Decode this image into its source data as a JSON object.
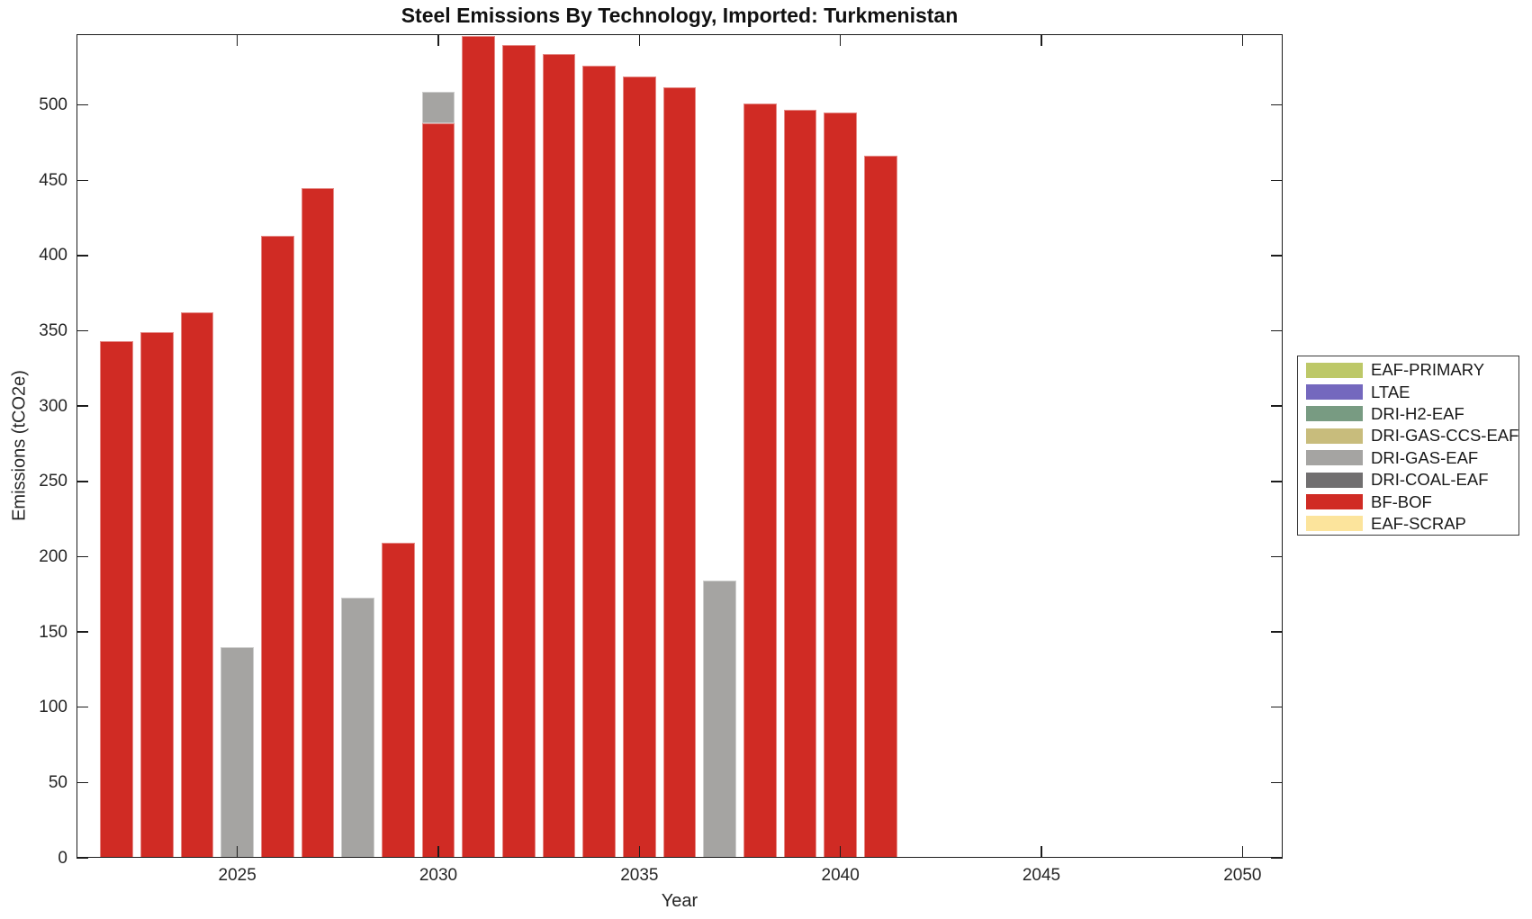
{
  "figure": {
    "background": "#ffffff"
  },
  "chart_data": {
    "type": "bar",
    "stacked": true,
    "title": "Steel Emissions By Technology, Imported: Turkmenistan",
    "xlabel": "Year",
    "ylabel": "Emissions (tCO2e)",
    "xlim": [
      2021,
      2051
    ],
    "ylim": [
      0,
      547
    ],
    "x_ticks": [
      2025,
      2030,
      2035,
      2040,
      2045,
      2050
    ],
    "y_ticks": [
      0,
      50,
      100,
      150,
      200,
      250,
      300,
      350,
      400,
      450,
      500
    ],
    "grid": false,
    "legend_position": "right-outside",
    "bar_width_years": 0.82,
    "categories": [
      2022,
      2023,
      2024,
      2025,
      2026,
      2027,
      2028,
      2029,
      2030,
      2031,
      2032,
      2033,
      2034,
      2035,
      2036,
      2037,
      2038,
      2039,
      2040,
      2041
    ],
    "series": [
      {
        "name": "EAF-PRIMARY",
        "color": "#BDC868",
        "values": [
          0,
          0,
          0,
          0,
          0,
          0,
          0,
          0,
          0,
          0,
          0,
          0,
          0,
          0,
          0,
          0,
          0,
          0,
          0,
          0
        ]
      },
      {
        "name": "LTAE",
        "color": "#7468BE",
        "values": [
          0,
          0,
          0,
          0,
          0,
          0,
          0,
          0,
          0,
          0,
          0,
          0,
          0,
          0,
          0,
          0,
          0,
          0,
          0,
          0
        ]
      },
      {
        "name": "DRI-H2-EAF",
        "color": "#789B82",
        "values": [
          0,
          0,
          0,
          0,
          0,
          0,
          0,
          0,
          0,
          0,
          0,
          0,
          0,
          0,
          0,
          0,
          0,
          0,
          0,
          0
        ]
      },
      {
        "name": "DRI-GAS-CCS-EAF",
        "color": "#C8BC7C",
        "values": [
          0,
          0,
          0,
          0,
          0,
          0,
          0,
          0,
          0,
          0,
          0,
          0,
          0,
          0,
          0,
          0,
          0,
          0,
          0,
          0
        ]
      },
      {
        "name": "DRI-GAS-EAF",
        "color": "#A5A4A2",
        "values": [
          0,
          0,
          0,
          140,
          0,
          0,
          173,
          0,
          21,
          0,
          0,
          0,
          0,
          0,
          0,
          184,
          0,
          0,
          0,
          0
        ]
      },
      {
        "name": "DRI-COAL-EAF",
        "color": "#716F70",
        "values": [
          0,
          0,
          0,
          0,
          0,
          0,
          0,
          0,
          0,
          0,
          0,
          0,
          0,
          0,
          0,
          0,
          0,
          0,
          0,
          0
        ]
      },
      {
        "name": "BF-BOF",
        "color": "#D02B24",
        "values": [
          343,
          349,
          362,
          0,
          413,
          445,
          0,
          209,
          488,
          546,
          540,
          534,
          526,
          519,
          512,
          0,
          501,
          497,
          495,
          466
        ]
      },
      {
        "name": "EAF-SCRAP",
        "color": "#FCE49C",
        "values": [
          0,
          0,
          0,
          0,
          0,
          0,
          0,
          0,
          0,
          0,
          0,
          0,
          0,
          0,
          0,
          0,
          0,
          0,
          0,
          0
        ]
      }
    ],
    "legend_order": [
      "EAF-PRIMARY",
      "LTAE",
      "DRI-H2-EAF",
      "DRI-GAS-CCS-EAF",
      "DRI-GAS-EAF",
      "DRI-COAL-EAF",
      "BF-BOF",
      "EAF-SCRAP"
    ],
    "stack_order": [
      "EAF-SCRAP",
      "BF-BOF",
      "DRI-COAL-EAF",
      "DRI-GAS-EAF",
      "DRI-GAS-CCS-EAF",
      "DRI-H2-EAF",
      "LTAE",
      "EAF-PRIMARY"
    ]
  }
}
